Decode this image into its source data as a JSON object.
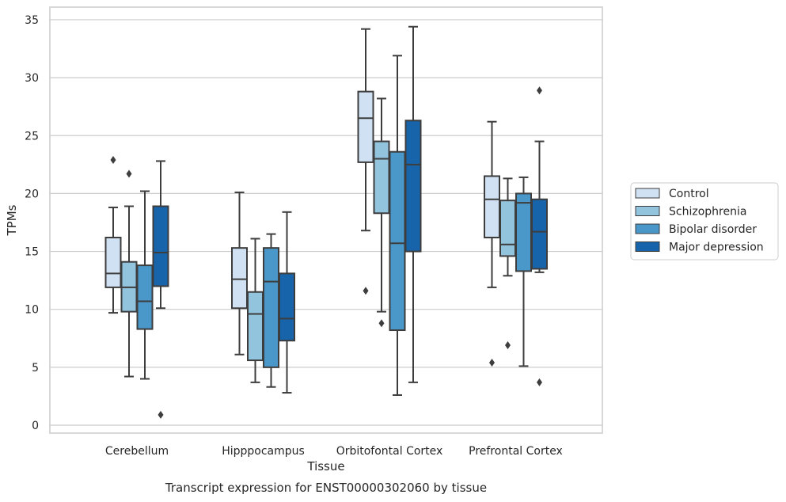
{
  "chart_data": {
    "type": "box",
    "title": "Transcript expression for ENST00000302060 by tissue",
    "xlabel": "Tissue",
    "ylabel": "TPMs",
    "ylim": [
      -0.8,
      36
    ],
    "yticks": [
      0,
      5,
      10,
      15,
      20,
      25,
      30,
      35
    ],
    "grid": true,
    "legend_position": "right",
    "categories": [
      "Cerebellum",
      "Hipppocampus",
      "Orbitofontal Cortex",
      "Prefrontal Cortex"
    ],
    "series": [
      {
        "name": "Control",
        "color": "#cfe1f2",
        "boxes": [
          {
            "whislo": 9.7,
            "q1": 11.9,
            "med": 13.1,
            "q3": 16.2,
            "whishi": 18.8,
            "fliers": [
              22.9
            ]
          },
          {
            "whislo": 6.1,
            "q1": 10.1,
            "med": 12.6,
            "q3": 15.3,
            "whishi": 20.1,
            "fliers": []
          },
          {
            "whislo": 16.8,
            "q1": 22.7,
            "med": 26.5,
            "q3": 28.8,
            "whishi": 34.2,
            "fliers": [
              11.6
            ]
          },
          {
            "whislo": 11.9,
            "q1": 16.2,
            "med": 19.5,
            "q3": 21.5,
            "whishi": 26.2,
            "fliers": [
              5.4
            ]
          }
        ]
      },
      {
        "name": "Schizophrenia",
        "color": "#93c4de",
        "boxes": [
          {
            "whislo": 4.2,
            "q1": 9.8,
            "med": 11.9,
            "q3": 14.1,
            "whishi": 18.9,
            "fliers": [
              21.7
            ]
          },
          {
            "whislo": 3.7,
            "q1": 5.6,
            "med": 9.6,
            "q3": 11.5,
            "whishi": 16.1,
            "fliers": []
          },
          {
            "whislo": 9.8,
            "q1": 18.3,
            "med": 23.0,
            "q3": 24.5,
            "whishi": 28.2,
            "fliers": [
              8.8
            ]
          },
          {
            "whislo": 12.9,
            "q1": 14.6,
            "med": 15.6,
            "q3": 19.4,
            "whishi": 21.3,
            "fliers": [
              6.9
            ]
          }
        ]
      },
      {
        "name": "Bipolar disorder",
        "color": "#4a98c9",
        "boxes": [
          {
            "whislo": 4.0,
            "q1": 8.3,
            "med": 10.7,
            "q3": 13.8,
            "whishi": 20.2,
            "fliers": []
          },
          {
            "whislo": 3.3,
            "q1": 5.0,
            "med": 12.4,
            "q3": 15.3,
            "whishi": 16.5,
            "fliers": []
          },
          {
            "whislo": 2.6,
            "q1": 8.2,
            "med": 15.7,
            "q3": 23.6,
            "whishi": 31.9,
            "fliers": []
          },
          {
            "whislo": 5.1,
            "q1": 13.3,
            "med": 19.2,
            "q3": 20.0,
            "whishi": 21.4,
            "fliers": []
          }
        ]
      },
      {
        "name": "Major depression",
        "color": "#1764ab",
        "boxes": [
          {
            "whislo": 10.1,
            "q1": 12.0,
            "med": 14.9,
            "q3": 18.9,
            "whishi": 22.8,
            "fliers": [
              0.9
            ]
          },
          {
            "whislo": 2.8,
            "q1": 7.3,
            "med": 9.2,
            "q3": 13.1,
            "whishi": 18.4,
            "fliers": []
          },
          {
            "whislo": 3.7,
            "q1": 15.0,
            "med": 22.5,
            "q3": 26.3,
            "whishi": 34.4,
            "fliers": []
          },
          {
            "whislo": 13.2,
            "q1": 13.5,
            "med": 16.7,
            "q3": 19.5,
            "whishi": 24.5,
            "fliers": [
              28.9,
              3.7
            ]
          }
        ]
      }
    ]
  },
  "colors": {
    "grid": "#cccccc",
    "frame": "#cccccc",
    "box_edge": "#3d3d3d"
  }
}
